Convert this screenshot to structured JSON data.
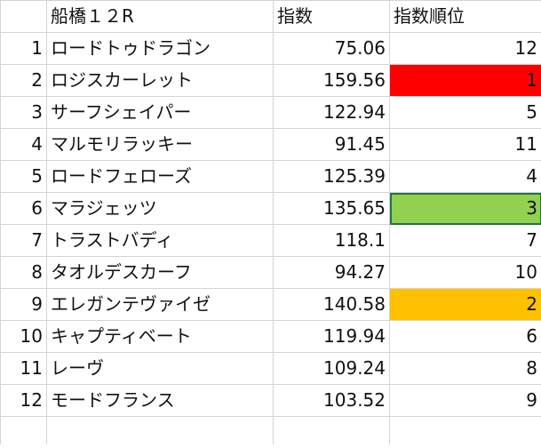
{
  "header": {
    "race": "船橋１２R",
    "index": "指数",
    "rank": "指数順位"
  },
  "colors": {
    "rank_1": "#ff0000",
    "rank_2": "#ffc000",
    "rank_3": "#92d050"
  },
  "rows": [
    {
      "no": "1",
      "name": "ロードトゥドラゴン",
      "index": "75.06",
      "rank": "12"
    },
    {
      "no": "2",
      "name": "ロジスカーレット",
      "index": "159.56",
      "rank": "1"
    },
    {
      "no": "3",
      "name": "サーフシェイパー",
      "index": "122.94",
      "rank": "5"
    },
    {
      "no": "4",
      "name": "マルモリラッキー",
      "index": "91.45",
      "rank": "11"
    },
    {
      "no": "5",
      "name": "ロードフェローズ",
      "index": "125.39",
      "rank": "4"
    },
    {
      "no": "6",
      "name": "マラジェッツ",
      "index": "135.65",
      "rank": "3"
    },
    {
      "no": "7",
      "name": "トラストバディ",
      "index": "118.1",
      "rank": "7"
    },
    {
      "no": "8",
      "name": "タオルデスカーフ",
      "index": "94.27",
      "rank": "10"
    },
    {
      "no": "9",
      "name": "エレガンテヴァイゼ",
      "index": "140.58",
      "rank": "2"
    },
    {
      "no": "10",
      "name": "キャプティベート",
      "index": "119.94",
      "rank": "6"
    },
    {
      "no": "11",
      "name": "レーヴ",
      "index": "109.24",
      "rank": "8"
    },
    {
      "no": "12",
      "name": "モードフランス",
      "index": "103.52",
      "rank": "9"
    }
  ]
}
